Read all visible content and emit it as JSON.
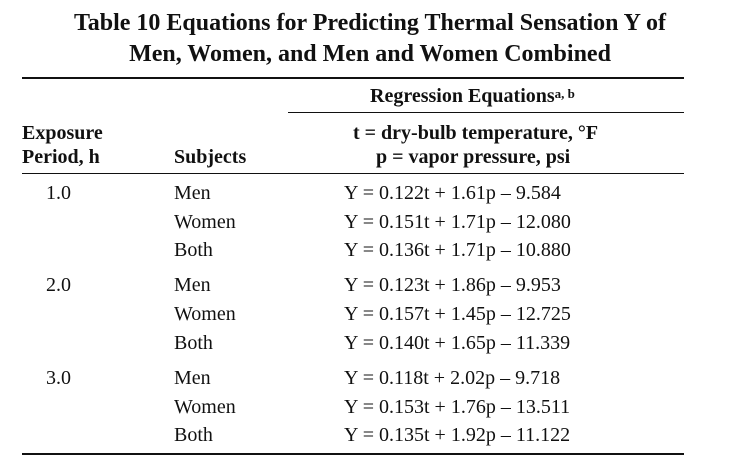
{
  "table": {
    "title_line1": "Table 10   Equations for Predicting Thermal Sensation Y of",
    "title_line2": "Men, Women, and Men and Women Combined",
    "col_exposure_line1": "Exposure",
    "col_exposure_line2": "Period, h",
    "col_subjects": "Subjects",
    "col_regression": "Regression Equations",
    "col_regression_footnote": "a, b",
    "def_t": "t = dry-bulb temperature, °F",
    "def_p": "p = vapor pressure, psi",
    "groups": [
      {
        "period": "1.0",
        "rows": [
          {
            "subject": "Men",
            "equation": "Y = 0.122t + 1.61p – 9.584"
          },
          {
            "subject": "Women",
            "equation": "Y = 0.151t + 1.71p – 12.080"
          },
          {
            "subject": "Both",
            "equation": "Y = 0.136t + 1.71p – 10.880"
          }
        ]
      },
      {
        "period": "2.0",
        "rows": [
          {
            "subject": "Men",
            "equation": "Y = 0.123t + 1.86p – 9.953"
          },
          {
            "subject": "Women",
            "equation": "Y = 0.157t + 1.45p – 12.725"
          },
          {
            "subject": "Both",
            "equation": "Y = 0.140t + 1.65p – 11.339"
          }
        ]
      },
      {
        "period": "3.0",
        "rows": [
          {
            "subject": "Men",
            "equation": "Y = 0.118t + 2.02p – 9.718"
          },
          {
            "subject": "Women",
            "equation": "Y = 0.153t + 1.76p – 13.511"
          },
          {
            "subject": "Both",
            "equation": "Y = 0.135t + 1.92p – 11.122"
          }
        ]
      }
    ]
  }
}
